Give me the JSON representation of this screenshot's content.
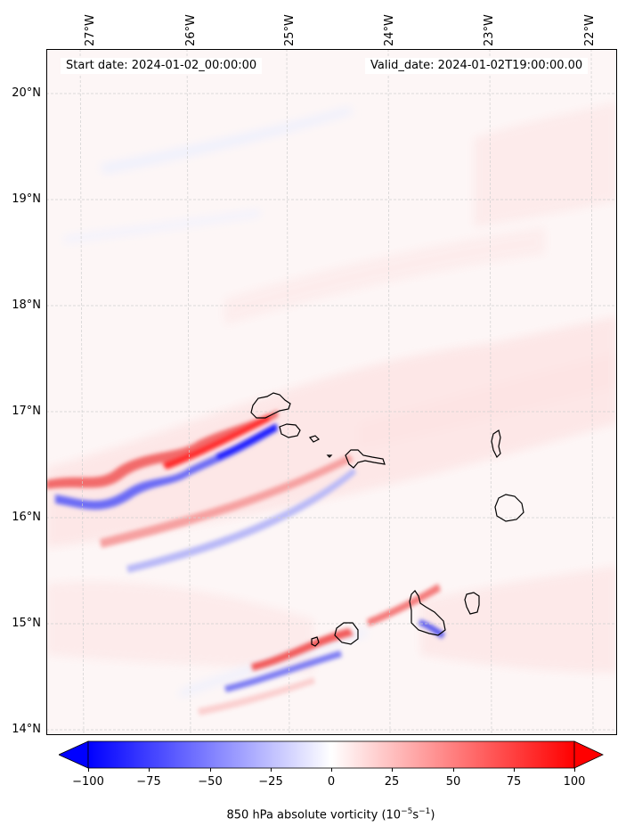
{
  "map": {
    "start_label": "Start date: 2024-01-02_00:00:00",
    "valid_label": "Valid_date: 2024-01-02T19:00:00.00",
    "lon_labels": [
      "27°W",
      "26°W",
      "25°W",
      "24°W",
      "23°W",
      "22°W"
    ],
    "lat_labels": [
      "20°N",
      "19°N",
      "18°N",
      "17°N",
      "16°N",
      "15°N",
      "14°N"
    ],
    "extent": {
      "lon_min": -27.3,
      "lon_max": -21.9,
      "lat_min": 13.95,
      "lat_max": 20.42
    }
  },
  "colorbar": {
    "ticks": [
      "−100",
      "−75",
      "−50",
      "−25",
      "0",
      "25",
      "50",
      "75",
      "100"
    ],
    "label": "850 hPa absolute vorticity (10",
    "label_exp1": "−5",
    "label_mid": "s",
    "label_exp2": "−1",
    "label_end": ")",
    "min_color": "#0000ff",
    "mid_color": "#ffffff",
    "max_color": "#ff0000"
  }
}
